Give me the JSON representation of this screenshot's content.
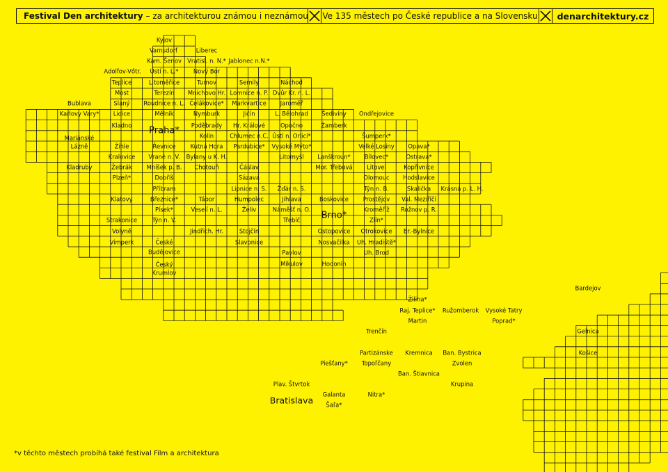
{
  "header": {
    "festival": "Festival Den architektury",
    "tagline": "– za architekturou známou i neznámou",
    "scope": "Ve 135 městech po České republice a na Slovensku",
    "url": "denarchitektury.cz",
    "mark": "x-box-icon"
  },
  "footnote": "*v těchto městech probíhá také festival Film a architektura",
  "colors": {
    "background": "#fff200",
    "ink": "#111111"
  },
  "cz_cities": [
    "Kyjov",
    "Varnsdorf",
    "Liberec",
    "Kam. Šenov",
    "Vratisl. n. N.*",
    "Jablonec n.N.*",
    "Adolfov-Vőtr.",
    "Ústí n. L.*",
    "Nový Bor",
    "Teplice",
    "Litoměřice",
    "Turnov",
    "Semily",
    "Náchod",
    "Most",
    "Terezín",
    "Mnichovo Hr.",
    "Lomnice n. P.",
    "Dvůr Kr. n. L.",
    "Bublava",
    "Slaný",
    "Roudnice n. L.",
    "Čelákovice*",
    "Markvartice",
    "Jaroměř",
    "Karlovy Vary*",
    "Lidice",
    "Mělník",
    "Nymburk",
    "Jičín",
    "L. Bělohrad",
    "Šedivíny",
    "Ondřejovice",
    "Kladno",
    "Praha*",
    "Poděbrady",
    "Hr. Králové",
    "Opočno",
    "Žamberk",
    "Mariánské",
    "Lázně",
    "Kolín",
    "Chlumec n.C.",
    "Ústí n. Orlicí*",
    "Šumperk*",
    "Žihle",
    "Řevnice",
    "Kutná Hora",
    "Pardubice*",
    "Vysoké Mýto*",
    "Velké Losiny",
    "Opava*",
    "Kralovice",
    "Vrané n. V.",
    "Bylany u K. H.",
    "Litomyšl",
    "Lanškroun*",
    "Bílovec*",
    "Ostrava*",
    "Kladruby",
    "Žebrák",
    "Mníšek p. B.",
    "Chotouň",
    "Čáslav",
    "Mor. Třebová",
    "Litovel",
    "Kopřivnice",
    "Plzeň*",
    "Dobříš",
    "Sázava",
    "Olomouc",
    "Hodslavice",
    "Příbram",
    "Lipnice n. S.",
    "Žďár n. S.",
    "Týn n. B.",
    "Skalička",
    "Krásná p. L. H.",
    "Klatovy",
    "Březnice*",
    "Tábor",
    "Humpolec",
    "Jihlava",
    "Boskovice",
    "Prostějov",
    "Val. Meziříčí",
    "Písek*",
    "Veselí n. L.",
    "Želiv",
    "Náměšť n. O.",
    "Brno*",
    "Kroměříž",
    "Rožnov p. R.",
    "Strakonice",
    "Týn n. V.",
    "Třebíč",
    "Zlín*",
    "Volyně",
    "Jindřich. Hr.",
    "Stojčín",
    "Ostopovice",
    "Otrokovice",
    "Br.-Bylnice",
    "Vimperk",
    "České",
    "Budějovice",
    "Slavonice",
    "Nosvačilka",
    "Uh. Hradiště*",
    "Pavlov",
    "Uh. Brod",
    "Český",
    "Krumlov",
    "Mikulov",
    "Hodonín"
  ],
  "sk_cities": [
    "Bardejov",
    "Žilina*",
    "Raj. Teplice*",
    "Ružomberok",
    "Vysoké Tatry",
    "Martin",
    "Poprad*",
    "Trenčín",
    "Gelnica",
    "Partizánske",
    "Kremnica",
    "Ban. Bystrica",
    "Košice",
    "Piešťany*",
    "Topoľčany",
    "Zvolen",
    "Ban. Štiavnica",
    "Plav. Štvrtok",
    "Krupina",
    "Bratislava",
    "Galanta",
    "Nitra*",
    "Šaľa*"
  ]
}
